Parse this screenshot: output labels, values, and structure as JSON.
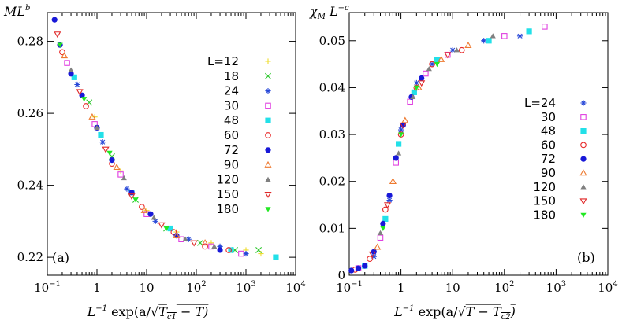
{
  "chart_data": [
    {
      "type": "scatter",
      "panel_label": "(a)",
      "ylabel": "ML^b",
      "ylabel_parts": {
        "base": "ML",
        "sup": "b"
      },
      "xlabel": "L^-1 exp(a/√(Tc1−T))",
      "xlabel_parts": {
        "left": "L",
        "sup": "−1",
        "mid": " exp(a/",
        "root": "T",
        "sub": "c1",
        "tail": " − T)"
      },
      "xscale": "log",
      "xlim": [
        0.1,
        10000
      ],
      "ylim": [
        0.215,
        0.288
      ],
      "xticks": [
        {
          "label": "10",
          "sup": "−1",
          "value": 0.1
        },
        {
          "label": "1",
          "sup": "",
          "value": 1
        },
        {
          "label": "10",
          "sup": "",
          "value": 10
        },
        {
          "label": "10",
          "sup": "2",
          "value": 100
        },
        {
          "label": "10",
          "sup": "3",
          "value": 1000
        },
        {
          "label": "10",
          "sup": "4",
          "value": 10000
        }
      ],
      "yticks": [
        {
          "label": "0.22",
          "value": 0.22
        },
        {
          "label": "0.24",
          "value": 0.24
        },
        {
          "label": "0.26",
          "value": 0.26
        },
        {
          "label": "0.28",
          "value": 0.28
        }
      ],
      "legend_position": "right",
      "series": [
        {
          "name": "L=12",
          "marker": "plus",
          "color": "#eedd30",
          "x": [
            0.9,
            3,
            10,
            40,
            200,
            1000,
            2000
          ],
          "y": [
            0.259,
            0.244,
            0.233,
            0.227,
            0.224,
            0.222,
            0.221
          ]
        },
        {
          "name": "18",
          "marker": "cross",
          "color": "#2ec82e",
          "x": [
            0.7,
            2,
            6,
            25,
            120,
            600,
            1800
          ],
          "y": [
            0.263,
            0.248,
            0.236,
            0.228,
            0.224,
            0.222,
            0.222
          ]
        },
        {
          "name": "24",
          "marker": "star",
          "color": "#2848d8",
          "x": [
            0.4,
            1.3,
            4,
            15,
            70,
            300,
            1000
          ],
          "y": [
            0.268,
            0.252,
            0.239,
            0.23,
            0.225,
            0.223,
            0.221
          ]
        },
        {
          "name": "30",
          "marker": "square-open",
          "color": "#e040e0",
          "x": [
            0.25,
            0.9,
            3,
            10,
            50,
            200,
            800
          ],
          "y": [
            0.274,
            0.257,
            0.243,
            0.232,
            0.225,
            0.223,
            0.221
          ]
        },
        {
          "name": "48",
          "marker": "square-filled",
          "color": "#22e0e8",
          "x": [
            0.35,
            1.2,
            5,
            30,
            500,
            4000
          ],
          "y": [
            0.27,
            0.254,
            0.238,
            0.228,
            0.222,
            0.22
          ]
        },
        {
          "name": "60",
          "marker": "circle-open",
          "color": "#e82a2a",
          "x": [
            0.2,
            0.6,
            2,
            8,
            35,
            150,
            450
          ],
          "y": [
            0.277,
            0.262,
            0.246,
            0.234,
            0.227,
            0.223,
            0.222
          ]
        },
        {
          "name": "72",
          "marker": "circle-filled",
          "color": "#1818d8",
          "x": [
            0.14,
            0.18,
            0.3,
            0.5,
            1,
            2,
            5,
            12,
            40,
            300
          ],
          "y": [
            0.286,
            0.279,
            0.271,
            0.265,
            0.256,
            0.247,
            0.238,
            0.232,
            0.226,
            0.222
          ]
        },
        {
          "name": "90",
          "marker": "triangle-up-open",
          "color": "#ee7a30",
          "x": [
            0.22,
            0.8,
            2.5,
            9,
            40,
            150
          ],
          "y": [
            0.276,
            0.259,
            0.245,
            0.233,
            0.226,
            0.224
          ]
        },
        {
          "name": "120",
          "marker": "triangle-up-filled",
          "color": "#808080",
          "x": [
            0.3,
            1,
            3.5,
            14,
            60,
            230
          ],
          "y": [
            0.272,
            0.256,
            0.242,
            0.231,
            0.225,
            0.223
          ]
        },
        {
          "name": "150",
          "marker": "triangle-down-open",
          "color": "#e02828",
          "x": [
            0.16,
            0.45,
            1.5,
            5,
            20,
            90
          ],
          "y": [
            0.282,
            0.266,
            0.25,
            0.237,
            0.229,
            0.224
          ]
        },
        {
          "name": "180",
          "marker": "triangle-down-filled",
          "color": "#22e822",
          "x": [
            0.18,
            0.55,
            1.8,
            6,
            25
          ],
          "y": [
            0.279,
            0.264,
            0.249,
            0.236,
            0.228
          ]
        }
      ]
    },
    {
      "type": "scatter",
      "panel_label": "(b)",
      "ylabel": "χ_M L^-c",
      "ylabel_parts": {
        "base": "χ",
        "sub": "M",
        "mid": "L",
        "sup": "−c"
      },
      "xlabel": "L^-1 exp(a/√(T−Tc2))",
      "xlabel_parts": {
        "left": "L",
        "sup": "−1",
        "mid": " exp(a/",
        "root": "T − T",
        "sub": "c2",
        "tail": ")"
      },
      "xscale": "log",
      "xlim": [
        0.1,
        10000
      ],
      "ylim": [
        0,
        0.056
      ],
      "xticks": [
        {
          "label": "10",
          "sup": "−1",
          "value": 0.1
        },
        {
          "label": "1",
          "sup": "",
          "value": 1
        },
        {
          "label": "10",
          "sup": "",
          "value": 10
        },
        {
          "label": "10",
          "sup": "2",
          "value": 100
        },
        {
          "label": "10",
          "sup": "3",
          "value": 1000
        },
        {
          "label": "10",
          "sup": "4",
          "value": 10000
        }
      ],
      "yticks": [
        {
          "label": "0",
          "value": 0
        },
        {
          "label": "0.01",
          "value": 0.01
        },
        {
          "label": "0.02",
          "value": 0.02
        },
        {
          "label": "0.03",
          "value": 0.03
        },
        {
          "label": "0.04",
          "value": 0.04
        },
        {
          "label": "0.05",
          "value": 0.05
        }
      ],
      "legend_position": "right",
      "series": [
        {
          "name": "L=24",
          "marker": "star",
          "color": "#2848d8",
          "x": [
            0.3,
            0.6,
            1,
            2,
            4,
            10,
            40,
            200
          ],
          "y": [
            0.004,
            0.016,
            0.031,
            0.041,
            0.045,
            0.048,
            0.05,
            0.051
          ]
        },
        {
          "name": "30",
          "marker": "square-open",
          "color": "#e040e0",
          "x": [
            0.15,
            0.4,
            0.8,
            1.5,
            3,
            8,
            100,
            600
          ],
          "y": [
            0.0015,
            0.008,
            0.024,
            0.037,
            0.043,
            0.047,
            0.051,
            0.053
          ]
        },
        {
          "name": "48",
          "marker": "square-filled",
          "color": "#22e0e8",
          "x": [
            0.2,
            0.5,
            0.9,
            1.8,
            5,
            50,
            300
          ],
          "y": [
            0.002,
            0.012,
            0.028,
            0.039,
            0.046,
            0.05,
            0.052
          ]
        },
        {
          "name": "60",
          "marker": "circle-open",
          "color": "#e82a2a",
          "x": [
            0.13,
            0.25,
            0.5,
            1,
            2,
            4,
            15
          ],
          "y": [
            0.0012,
            0.0035,
            0.014,
            0.03,
            0.04,
            0.045,
            0.048
          ]
        },
        {
          "name": "72",
          "marker": "circle-filled",
          "color": "#1818d8",
          "x": [
            0.11,
            0.15,
            0.2,
            0.3,
            0.45,
            0.6,
            0.8,
            1.1,
            1.6,
            2.5
          ],
          "y": [
            0.001,
            0.0015,
            0.002,
            0.005,
            0.011,
            0.017,
            0.025,
            0.032,
            0.038,
            0.042
          ]
        },
        {
          "name": "90",
          "marker": "triangle-up-open",
          "color": "#ee7a30",
          "x": [
            0.35,
            0.7,
            1.2,
            2.2,
            6,
            20
          ],
          "y": [
            0.006,
            0.02,
            0.033,
            0.04,
            0.046,
            0.049
          ]
        },
        {
          "name": "120",
          "marker": "triangle-up-filled",
          "color": "#808080",
          "x": [
            0.4,
            0.9,
            1.7,
            3.5,
            12,
            60
          ],
          "y": [
            0.009,
            0.026,
            0.038,
            0.044,
            0.048,
            0.051
          ]
        },
        {
          "name": "150",
          "marker": "triangle-down-open",
          "color": "#e02828",
          "x": [
            0.28,
            0.55,
            1.1,
            2.5,
            8
          ],
          "y": [
            0.0045,
            0.015,
            0.032,
            0.041,
            0.047
          ]
        },
        {
          "name": "180",
          "marker": "triangle-down-filled",
          "color": "#22e822",
          "x": [
            0.45,
            1,
            2,
            5
          ],
          "y": [
            0.01,
            0.03,
            0.04,
            0.045
          ]
        }
      ]
    }
  ]
}
